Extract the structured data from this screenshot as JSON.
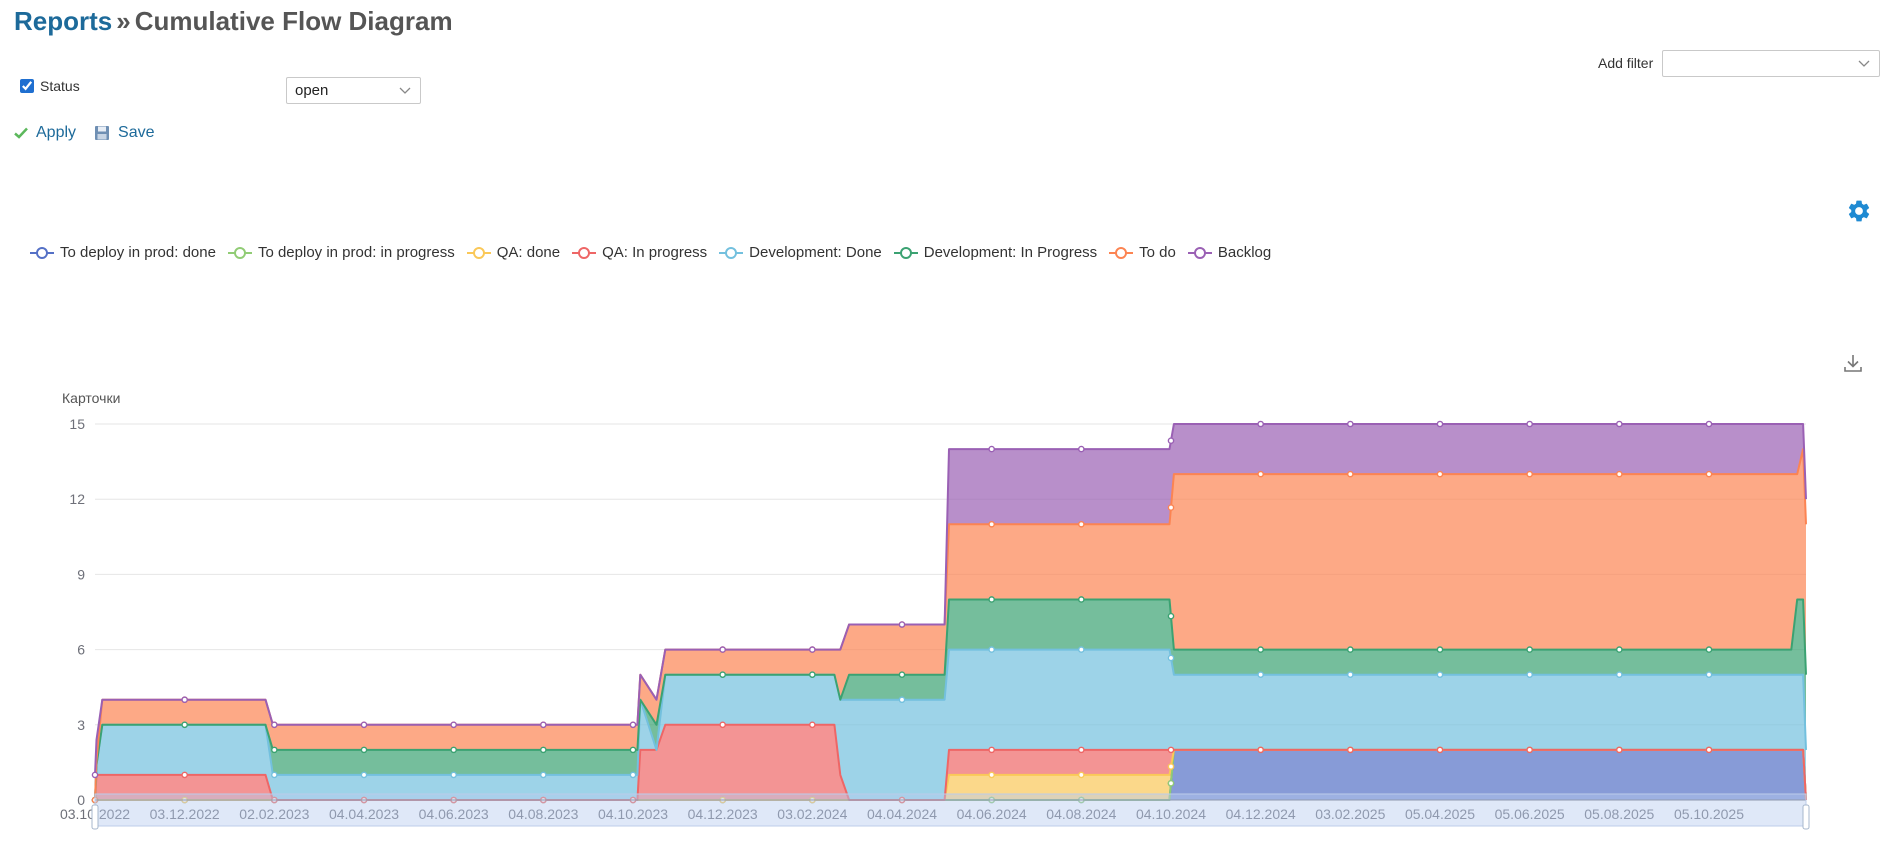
{
  "header": {
    "breadcrumb_link": "Reports",
    "separator": "»",
    "title": "Cumulative Flow Diagram"
  },
  "filters": {
    "status_label": "Status",
    "status_checked": true,
    "status_value": "open",
    "add_filter_label": "Add filter",
    "add_filter_value": ""
  },
  "actions": {
    "apply_label": "Apply",
    "save_label": "Save"
  },
  "icons": {
    "settings": "gear-icon",
    "download": "download-icon",
    "apply": "checkmark-icon",
    "save": "floppy-disk-icon"
  },
  "chart_data": {
    "type": "area",
    "stacked": true,
    "ylabel": "Карточки",
    "ylim": [
      0,
      15
    ],
    "yticks": [
      0,
      3,
      6,
      9,
      12,
      15
    ],
    "xlim": [
      "2022-10-03",
      "2025-12-10"
    ],
    "xtick_labels": [
      "03.10.2022",
      "03.12.2022",
      "02.02.2023",
      "04.04.2023",
      "04.06.2023",
      "04.08.2023",
      "04.10.2023",
      "04.12.2023",
      "03.02.2024",
      "04.04.2024",
      "04.06.2024",
      "04.08.2024",
      "04.10.2024",
      "04.12.2024",
      "03.02.2025",
      "05.04.2025",
      "05.06.2025",
      "05.08.2025",
      "05.10.2025"
    ],
    "grid": true,
    "legend_position": "top-left",
    "series": [
      {
        "name": "To deploy in prod: done",
        "color": "#5470c6",
        "points": [
          [
            "2022-10-03",
            0
          ],
          [
            "2024-10-03",
            0
          ],
          [
            "2024-10-06",
            2
          ],
          [
            "2025-12-08",
            2
          ],
          [
            "2025-12-10",
            0
          ]
        ]
      },
      {
        "name": "To deploy in prod: in progress",
        "color": "#91cc75",
        "points": [
          [
            "2022-10-03",
            0
          ],
          [
            "2025-12-10",
            0
          ]
        ]
      },
      {
        "name": "QA: done",
        "color": "#fac858",
        "points": [
          [
            "2022-10-03",
            0
          ],
          [
            "2024-05-03",
            0
          ],
          [
            "2024-05-06",
            1
          ],
          [
            "2024-10-03",
            1
          ],
          [
            "2024-10-06",
            0
          ],
          [
            "2025-12-10",
            0
          ]
        ]
      },
      {
        "name": "QA: In progress",
        "color": "#ee6666",
        "points": [
          [
            "2022-10-03",
            0
          ],
          [
            "2022-10-04",
            1
          ],
          [
            "2023-01-27",
            1
          ],
          [
            "2023-02-01",
            0
          ],
          [
            "2023-10-07",
            0
          ],
          [
            "2023-10-09",
            2
          ],
          [
            "2023-10-20",
            2
          ],
          [
            "2023-10-26",
            3
          ],
          [
            "2024-02-18",
            3
          ],
          [
            "2024-02-22",
            1
          ],
          [
            "2024-02-28",
            0
          ],
          [
            "2024-05-03",
            0
          ],
          [
            "2024-05-06",
            1
          ],
          [
            "2024-10-03",
            1
          ],
          [
            "2024-10-06",
            0
          ],
          [
            "2025-12-10",
            0
          ]
        ]
      },
      {
        "name": "Development: Done",
        "color": "#73c0de",
        "points": [
          [
            "2022-10-03",
            0
          ],
          [
            "2022-10-08",
            2
          ],
          [
            "2023-01-27",
            2
          ],
          [
            "2023-02-01",
            1
          ],
          [
            "2023-10-07",
            1
          ],
          [
            "2023-10-09",
            2
          ],
          [
            "2023-10-20",
            0
          ],
          [
            "2023-10-26",
            2
          ],
          [
            "2024-02-18",
            2
          ],
          [
            "2024-02-22",
            3
          ],
          [
            "2024-02-28",
            4
          ],
          [
            "2024-05-03",
            4
          ],
          [
            "2024-05-06",
            4
          ],
          [
            "2024-10-03",
            4
          ],
          [
            "2024-10-06",
            3
          ],
          [
            "2025-12-08",
            3
          ],
          [
            "2025-12-10",
            2
          ]
        ]
      },
      {
        "name": "Development: In Progress",
        "color": "#3ba272",
        "points": [
          [
            "2022-10-03",
            0
          ],
          [
            "2022-10-08",
            0
          ],
          [
            "2023-01-27",
            0
          ],
          [
            "2023-02-01",
            1
          ],
          [
            "2023-10-07",
            1
          ],
          [
            "2023-10-09",
            0
          ],
          [
            "2023-10-20",
            1
          ],
          [
            "2023-10-26",
            0
          ],
          [
            "2024-02-18",
            0
          ],
          [
            "2024-02-22",
            0
          ],
          [
            "2024-02-28",
            1
          ],
          [
            "2024-05-03",
            1
          ],
          [
            "2024-05-06",
            2
          ],
          [
            "2024-10-03",
            2
          ],
          [
            "2024-10-06",
            1
          ],
          [
            "2025-11-30",
            1
          ],
          [
            "2025-12-04",
            3
          ],
          [
            "2025-12-10",
            3
          ]
        ]
      },
      {
        "name": "To do",
        "color": "#fc8452",
        "points": [
          [
            "2022-10-03",
            0
          ],
          [
            "2022-10-08",
            1
          ],
          [
            "2023-10-07",
            1
          ],
          [
            "2023-10-09",
            1
          ],
          [
            "2023-10-20",
            1
          ],
          [
            "2023-10-26",
            1
          ],
          [
            "2024-02-18",
            1
          ],
          [
            "2024-02-22",
            2
          ],
          [
            "2024-05-03",
            2
          ],
          [
            "2024-05-06",
            3
          ],
          [
            "2024-10-03",
            3
          ],
          [
            "2024-10-06",
            7
          ],
          [
            "2025-11-30",
            7
          ],
          [
            "2025-12-04",
            5
          ],
          [
            "2025-12-08",
            6
          ],
          [
            "2025-12-10",
            6
          ]
        ]
      },
      {
        "name": "Backlog",
        "color": "#9a60b4",
        "points": [
          [
            "2022-10-03",
            1
          ],
          [
            "2022-10-08",
            0
          ],
          [
            "2023-10-07",
            0
          ],
          [
            "2023-10-20",
            0
          ],
          [
            "2023-10-26",
            0
          ],
          [
            "2024-02-18",
            0
          ],
          [
            "2024-05-03",
            0
          ],
          [
            "2024-05-06",
            3
          ],
          [
            "2024-10-03",
            3
          ],
          [
            "2024-10-06",
            2
          ],
          [
            "2025-11-30",
            2
          ],
          [
            "2025-12-04",
            2
          ],
          [
            "2025-12-08",
            1
          ],
          [
            "2025-12-10",
            1
          ]
        ]
      }
    ]
  }
}
